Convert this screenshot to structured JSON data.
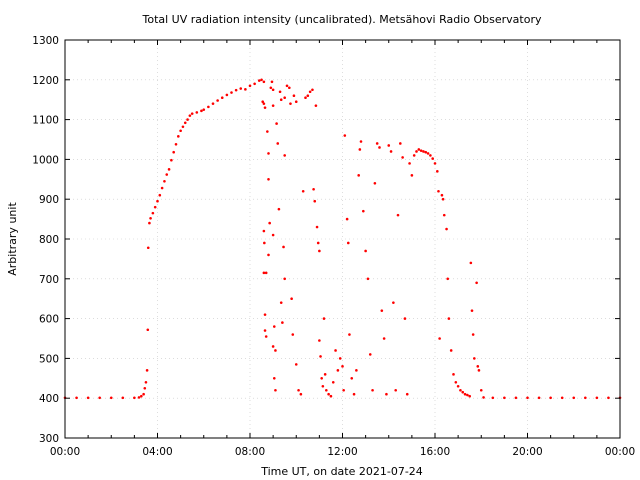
{
  "chart_data": {
    "type": "scatter",
    "title": "Total UV radiation intensity (uncalibrated). Metsähovi Radio Observatory",
    "xlabel": "Time UT, on date 2021-07-24",
    "ylabel": "Arbitrary unit",
    "xlim": [
      0,
      24
    ],
    "ylim": [
      300,
      1300
    ],
    "x_unit": "hours UT",
    "x_ticks": [
      {
        "value": 0,
        "label": "00:00"
      },
      {
        "value": 4,
        "label": "04:00"
      },
      {
        "value": 8,
        "label": "08:00"
      },
      {
        "value": 12,
        "label": "12:00"
      },
      {
        "value": 16,
        "label": "16:00"
      },
      {
        "value": 20,
        "label": "20:00"
      },
      {
        "value": 24,
        "label": "00:00"
      }
    ],
    "y_ticks": [
      300,
      400,
      500,
      600,
      700,
      800,
      900,
      1000,
      1100,
      1200,
      1300
    ],
    "grid": true,
    "marker_color": "#ff0000",
    "series": [
      {
        "points": [
          [
            0.0,
            401
          ],
          [
            0.5,
            401
          ],
          [
            1.0,
            401
          ],
          [
            1.5,
            401
          ],
          [
            2.0,
            401
          ],
          [
            2.5,
            401
          ],
          [
            3.0,
            401
          ],
          [
            3.2,
            402
          ],
          [
            3.3,
            405
          ],
          [
            3.4,
            410
          ],
          [
            3.45,
            425
          ],
          [
            3.5,
            440
          ],
          [
            3.55,
            470
          ],
          [
            3.58,
            572
          ],
          [
            3.6,
            778
          ],
          [
            3.65,
            840
          ],
          [
            3.7,
            852
          ],
          [
            3.8,
            865
          ],
          [
            3.9,
            880
          ],
          [
            4.0,
            895
          ],
          [
            4.1,
            910
          ],
          [
            4.2,
            928
          ],
          [
            4.3,
            945
          ],
          [
            4.4,
            962
          ],
          [
            4.5,
            975
          ],
          [
            4.6,
            998
          ],
          [
            4.7,
            1018
          ],
          [
            4.8,
            1038
          ],
          [
            4.9,
            1058
          ],
          [
            5.0,
            1072
          ],
          [
            5.1,
            1082
          ],
          [
            5.2,
            1092
          ],
          [
            5.3,
            1100
          ],
          [
            5.4,
            1110
          ],
          [
            5.5,
            1115
          ],
          [
            5.7,
            1118
          ],
          [
            5.9,
            1122
          ],
          [
            6.0,
            1125
          ],
          [
            6.2,
            1132
          ],
          [
            6.4,
            1140
          ],
          [
            6.6,
            1148
          ],
          [
            6.8,
            1155
          ],
          [
            7.0,
            1162
          ],
          [
            7.2,
            1168
          ],
          [
            7.4,
            1174
          ],
          [
            7.6,
            1178
          ],
          [
            7.8,
            1176
          ],
          [
            8.0,
            1185
          ],
          [
            8.2,
            1190
          ],
          [
            8.4,
            1198
          ],
          [
            8.5,
            1200
          ],
          [
            8.6,
            1195
          ],
          [
            8.55,
            1145
          ],
          [
            8.6,
            1140
          ],
          [
            8.65,
            1130
          ],
          [
            8.6,
            820
          ],
          [
            8.62,
            790
          ],
          [
            8.6,
            715
          ],
          [
            8.7,
            715
          ],
          [
            8.65,
            610
          ],
          [
            8.65,
            570
          ],
          [
            8.7,
            555
          ],
          [
            8.75,
            1070
          ],
          [
            8.8,
            1015
          ],
          [
            8.8,
            950
          ],
          [
            8.85,
            840
          ],
          [
            8.8,
            760
          ],
          [
            8.9,
            1180
          ],
          [
            8.95,
            1195
          ],
          [
            9.0,
            1175
          ],
          [
            9.0,
            1135
          ],
          [
            9.0,
            810
          ],
          [
            9.05,
            580
          ],
          [
            9.0,
            530
          ],
          [
            9.1,
            520
          ],
          [
            9.05,
            450
          ],
          [
            9.1,
            420
          ],
          [
            9.15,
            1090
          ],
          [
            9.2,
            1040
          ],
          [
            9.25,
            875
          ],
          [
            9.3,
            1170
          ],
          [
            9.35,
            1150
          ],
          [
            9.35,
            640
          ],
          [
            9.4,
            590
          ],
          [
            9.45,
            780
          ],
          [
            9.5,
            1155
          ],
          [
            9.5,
            1010
          ],
          [
            9.5,
            700
          ],
          [
            9.6,
            1185
          ],
          [
            9.7,
            1180
          ],
          [
            9.75,
            1140
          ],
          [
            9.8,
            650
          ],
          [
            9.85,
            560
          ],
          [
            9.9,
            1160
          ],
          [
            10.0,
            1145
          ],
          [
            10.0,
            485
          ],
          [
            10.1,
            420
          ],
          [
            10.2,
            410
          ],
          [
            10.3,
            920
          ],
          [
            10.4,
            1155
          ],
          [
            10.5,
            1160
          ],
          [
            10.6,
            1170
          ],
          [
            10.7,
            1175
          ],
          [
            10.75,
            925
          ],
          [
            10.8,
            895
          ],
          [
            10.85,
            1135
          ],
          [
            10.9,
            830
          ],
          [
            10.95,
            790
          ],
          [
            11.0,
            770
          ],
          [
            11.0,
            545
          ],
          [
            11.05,
            505
          ],
          [
            11.1,
            450
          ],
          [
            11.15,
            430
          ],
          [
            11.2,
            600
          ],
          [
            11.25,
            460
          ],
          [
            11.3,
            420
          ],
          [
            11.4,
            410
          ],
          [
            11.5,
            405
          ],
          [
            11.6,
            440
          ],
          [
            11.7,
            520
          ],
          [
            11.8,
            470
          ],
          [
            11.9,
            500
          ],
          [
            12.0,
            480
          ],
          [
            12.05,
            420
          ],
          [
            12.1,
            1060
          ],
          [
            12.2,
            850
          ],
          [
            12.25,
            790
          ],
          [
            12.3,
            560
          ],
          [
            12.4,
            450
          ],
          [
            12.5,
            410
          ],
          [
            12.6,
            470
          ],
          [
            12.7,
            960
          ],
          [
            12.75,
            1025
          ],
          [
            12.8,
            1045
          ],
          [
            12.9,
            870
          ],
          [
            13.0,
            770
          ],
          [
            13.1,
            700
          ],
          [
            13.2,
            510
          ],
          [
            13.3,
            420
          ],
          [
            13.4,
            940
          ],
          [
            13.5,
            1040
          ],
          [
            13.6,
            1030
          ],
          [
            13.7,
            620
          ],
          [
            13.8,
            550
          ],
          [
            13.9,
            410
          ],
          [
            14.0,
            1035
          ],
          [
            14.1,
            1020
          ],
          [
            14.2,
            640
          ],
          [
            14.3,
            420
          ],
          [
            14.4,
            860
          ],
          [
            14.5,
            1040
          ],
          [
            14.6,
            1005
          ],
          [
            14.7,
            600
          ],
          [
            14.8,
            410
          ],
          [
            14.9,
            990
          ],
          [
            15.0,
            960
          ],
          [
            15.1,
            1010
          ],
          [
            15.2,
            1020
          ],
          [
            15.3,
            1025
          ],
          [
            15.4,
            1022
          ],
          [
            15.5,
            1020
          ],
          [
            15.6,
            1018
          ],
          [
            15.7,
            1015
          ],
          [
            15.8,
            1010
          ],
          [
            15.9,
            1002
          ],
          [
            16.0,
            990
          ],
          [
            16.1,
            970
          ],
          [
            16.15,
            920
          ],
          [
            16.2,
            550
          ],
          [
            16.3,
            910
          ],
          [
            16.35,
            900
          ],
          [
            16.4,
            860
          ],
          [
            16.5,
            825
          ],
          [
            16.55,
            700
          ],
          [
            16.6,
            600
          ],
          [
            16.7,
            520
          ],
          [
            16.8,
            460
          ],
          [
            16.9,
            440
          ],
          [
            17.0,
            430
          ],
          [
            17.1,
            420
          ],
          [
            17.2,
            415
          ],
          [
            17.3,
            410
          ],
          [
            17.4,
            408
          ],
          [
            17.5,
            405
          ],
          [
            17.55,
            740
          ],
          [
            17.6,
            620
          ],
          [
            17.65,
            560
          ],
          [
            17.7,
            500
          ],
          [
            17.8,
            690
          ],
          [
            17.85,
            480
          ],
          [
            17.9,
            470
          ],
          [
            18.0,
            420
          ],
          [
            18.1,
            402
          ],
          [
            18.5,
            401
          ],
          [
            19.0,
            401
          ],
          [
            19.5,
            401
          ],
          [
            20.0,
            401
          ],
          [
            20.5,
            401
          ],
          [
            21.0,
            401
          ],
          [
            21.5,
            401
          ],
          [
            22.0,
            401
          ],
          [
            22.5,
            401
          ],
          [
            23.0,
            401
          ],
          [
            23.5,
            401
          ],
          [
            24.0,
            401
          ]
        ]
      }
    ]
  }
}
